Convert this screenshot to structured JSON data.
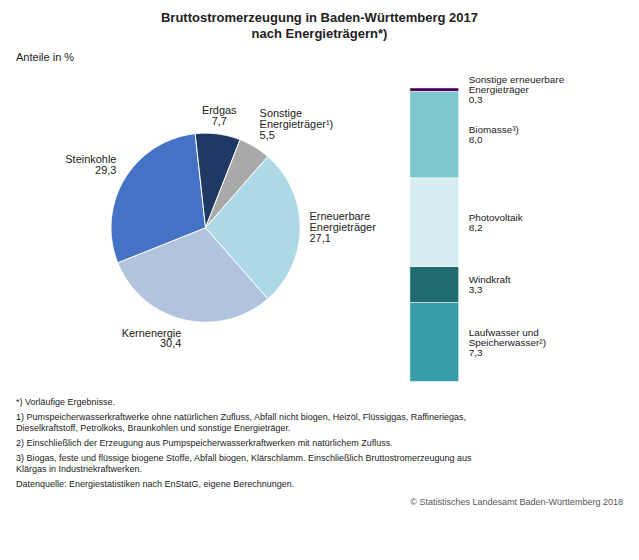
{
  "chart_data": [
    {
      "type": "pie",
      "title": "Bruttostromerzeugung in Baden-Württemberg 2017\nnach Energieträgern*)",
      "subtitle": "Anteile in %",
      "categories": [
        "Kernenergie",
        "Steinkohle",
        "Erdgas",
        "Sonstige\nEnergieträger¹)",
        "Erneuerbare\nEnergieträger"
      ],
      "values": [
        30.4,
        29.3,
        7.7,
        5.5,
        27.1
      ],
      "value_labels": [
        "30,4",
        "29,3",
        "7,7",
        "5,5",
        "27,1"
      ],
      "colors": [
        "#b0c4de",
        "#4472c4",
        "#1f3864",
        "#a9a9a9",
        "#add8e6"
      ],
      "data_labels": true,
      "annotations": [
        "*) Vorläufige Ergebnisse.",
        "1) Pumspeicherwasserkraftwerke ohne natürlichen Zufluss, Abfall nicht biogen, Heizöl, Flüssiggas, Raffineriegas,\nDieselkraftstoff, Petrolkoks, Braunkohlen und sonstige Energieträger.",
        "2) Einschließlich der Erzeugung aus Pumpspeicherwasserkraftwerken mit natürlichem Zufluss.",
        "3) Biogas, feste und flüssige biogene Stoffe, Abfall biogen, Klärschlamm. Einschließlich Bruttostromerzeugung aus\nKlärgas in Industriekraftwerken.",
        "Datenquelle: Energiestatistiken nach EnStatG, eigene Berechnungen.",
        "© Statistisches Landesamt Baden-Württemberg 2018"
      ]
    },
    {
      "type": "bar",
      "stacked": true,
      "categories": [
        null
      ],
      "series": [
        {
          "name": "Laufwasser und\nSpeicherwasser²)",
          "color": "#3a9eaa",
          "values": [
            7.3
          ],
          "value_labels": [
            "7,3"
          ]
        },
        {
          "name": "Windkraft",
          "color": "#1f6b6e",
          "values": [
            3.3
          ],
          "value_labels": [
            "3,3"
          ]
        },
        {
          "name": "Photovoltaik",
          "color": "#d6eef2",
          "values": [
            8.2
          ],
          "value_labels": [
            "8,2"
          ]
        },
        {
          "name": "Biomasse³)",
          "color": "#7ec8d0",
          "values": [
            8.0
          ],
          "value_labels": [
            "8,0"
          ]
        },
        {
          "name": "Sonstige erneuerbare\nEnergieträger",
          "color": "#4b0055",
          "values": [
            0.3
          ],
          "value_labels": [
            "0,3"
          ]
        }
      ],
      "ylim": [
        0,
        27.2
      ],
      "tick_labels": false,
      "data_labels": true
    }
  ]
}
